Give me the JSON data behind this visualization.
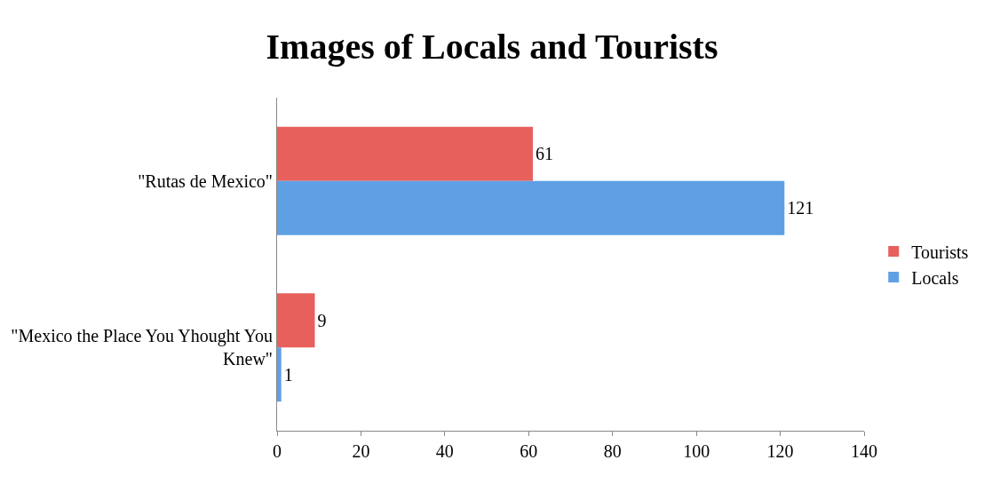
{
  "chart_data": {
    "type": "bar",
    "orientation": "horizontal",
    "title": "Images of Locals and Tourists",
    "categories": [
      "\"Rutas de Mexico\"",
      "\"Mexico the Place You Yhought You Knew\""
    ],
    "series": [
      {
        "name": "Tourists",
        "color": "#e8605c",
        "values": [
          61,
          9
        ]
      },
      {
        "name": "Locals",
        "color": "#5fa0e4",
        "values": [
          121,
          1
        ]
      }
    ],
    "xlim": [
      0,
      140
    ],
    "xticks": [
      0,
      20,
      40,
      60,
      80,
      100,
      120,
      140
    ],
    "data_labels": true,
    "legend": "right"
  }
}
